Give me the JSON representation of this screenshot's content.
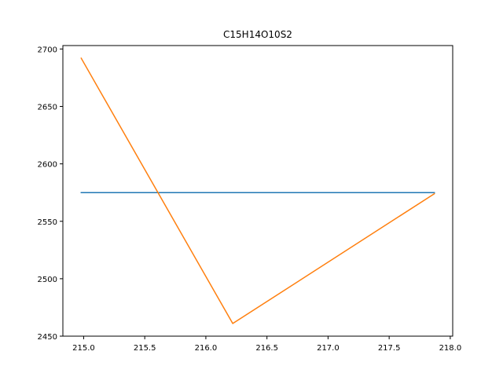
{
  "chart_data": {
    "type": "line",
    "title": "C15H14O10S2",
    "xlabel": "",
    "ylabel": "",
    "xlim": [
      214.83,
      218.02
    ],
    "ylim": [
      2450,
      2703
    ],
    "xticks": [
      215.0,
      215.5,
      216.0,
      216.5,
      217.0,
      217.5,
      218.0
    ],
    "xtick_labels": [
      "215.0",
      "215.5",
      "216.0",
      "216.5",
      "217.0",
      "217.5",
      "218.0"
    ],
    "yticks": [
      2450,
      2500,
      2550,
      2600,
      2650,
      2700
    ],
    "ytick_labels": [
      "2450",
      "2500",
      "2550",
      "2600",
      "2650",
      "2700"
    ],
    "grid": false,
    "series": [
      {
        "color": "#1f77b4",
        "x": [
          214.98,
          217.87
        ],
        "y": [
          2575,
          2575
        ]
      },
      {
        "color": "#ff7f0e",
        "x": [
          214.98,
          216.22,
          217.87
        ],
        "y": [
          2692,
          2461,
          2574
        ]
      }
    ]
  }
}
